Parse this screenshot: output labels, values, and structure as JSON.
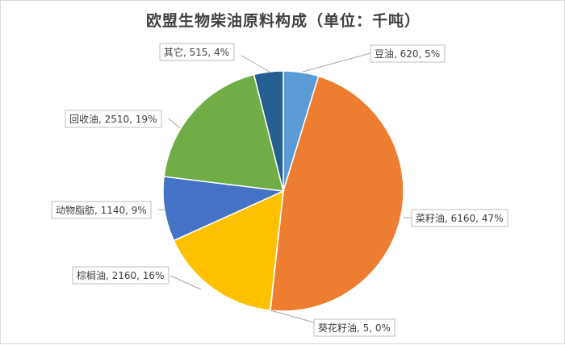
{
  "chart_data": {
    "type": "pie",
    "title": "欧盟生物柴油原料构成（单位：千吨）",
    "categories": [
      "豆油",
      "菜籽油",
      "葵花籽油",
      "棕榈油",
      "动物脂肪",
      "回收油",
      "其它"
    ],
    "values": [
      620,
      6160,
      5,
      2160,
      1140,
      2510,
      515
    ],
    "percent_labels": [
      "5%",
      "47%",
      "0%",
      "16%",
      "9%",
      "19%",
      "4%"
    ],
    "data_labels": [
      "豆油, 620, 5%",
      "菜籽油, 6160, 47%",
      "葵花籽油, 5, 0%",
      "棕榈油, 2160, 16%",
      "动物脂肪, 1140, 9%",
      "回收油, 2510, 19%",
      "其它, 515, 4%"
    ],
    "colors": [
      "#5b9bd5",
      "#ed7d31",
      "#a5a5a5",
      "#ffc000",
      "#4472c4",
      "#70ad47",
      "#255e91"
    ],
    "legend": "none",
    "start_angle": "12 o'clock, clockwise"
  }
}
